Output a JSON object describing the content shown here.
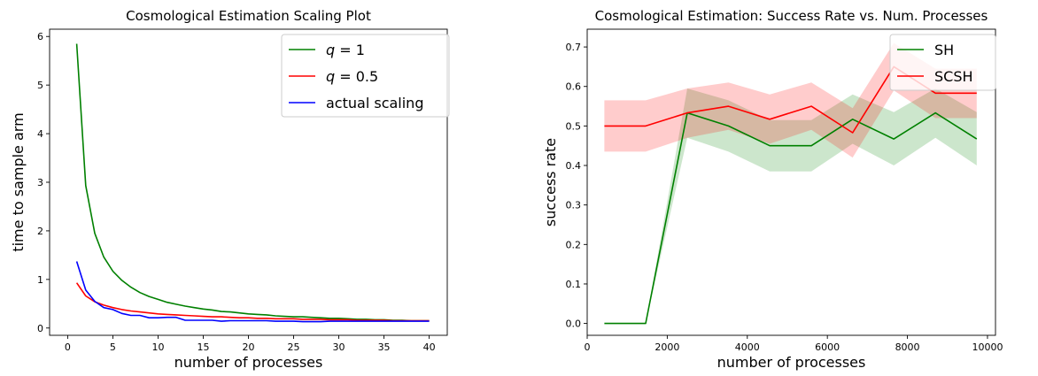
{
  "chart_data": [
    {
      "type": "line",
      "title": "Cosmological Estimation Scaling Plot",
      "xlabel": "number of processes",
      "ylabel": "time to sample arm",
      "xlim": [
        -2,
        42
      ],
      "ylim": [
        -0.15,
        6.15
      ],
      "xticks": [
        0,
        5,
        10,
        15,
        20,
        25,
        30,
        35,
        40
      ],
      "yticks": [
        0,
        1,
        2,
        3,
        4,
        5,
        6
      ],
      "grid": false,
      "legend_position": "top-right",
      "series": [
        {
          "name": "q = 1",
          "legend_parts": [
            "q",
            " = 1"
          ],
          "color": "#008000",
          "x": [
            1,
            2,
            3,
            4,
            5,
            6,
            7,
            8,
            9,
            10,
            11,
            12,
            13,
            14,
            15,
            16,
            17,
            18,
            19,
            20,
            21,
            22,
            23,
            24,
            25,
            26,
            27,
            28,
            29,
            30,
            31,
            32,
            33,
            34,
            35,
            36,
            37,
            38,
            39,
            40
          ],
          "y": [
            5.85,
            2.93,
            1.95,
            1.46,
            1.17,
            0.98,
            0.84,
            0.73,
            0.65,
            0.59,
            0.53,
            0.49,
            0.45,
            0.42,
            0.39,
            0.37,
            0.34,
            0.33,
            0.31,
            0.29,
            0.28,
            0.27,
            0.25,
            0.24,
            0.23,
            0.23,
            0.22,
            0.21,
            0.2,
            0.2,
            0.19,
            0.18,
            0.18,
            0.17,
            0.17,
            0.16,
            0.16,
            0.15,
            0.15,
            0.15
          ]
        },
        {
          "name": "q = 0.5",
          "legend_parts": [
            "q",
            " = 0.5"
          ],
          "color": "#ff0000",
          "x": [
            1,
            2,
            3,
            4,
            5,
            6,
            7,
            8,
            9,
            10,
            11,
            12,
            13,
            14,
            15,
            16,
            17,
            18,
            19,
            20,
            21,
            22,
            23,
            24,
            25,
            26,
            27,
            28,
            29,
            30,
            31,
            32,
            33,
            34,
            35,
            36,
            37,
            38,
            39,
            40
          ],
          "y": [
            0.93,
            0.66,
            0.54,
            0.47,
            0.42,
            0.38,
            0.35,
            0.33,
            0.31,
            0.29,
            0.28,
            0.27,
            0.26,
            0.25,
            0.24,
            0.23,
            0.23,
            0.22,
            0.21,
            0.21,
            0.2,
            0.2,
            0.19,
            0.19,
            0.19,
            0.18,
            0.18,
            0.18,
            0.17,
            0.17,
            0.17,
            0.16,
            0.16,
            0.16,
            0.16,
            0.15,
            0.15,
            0.15,
            0.15,
            0.15
          ]
        },
        {
          "name": "actual scaling",
          "legend_parts": [
            "actual scaling",
            ""
          ],
          "color": "#0000ff",
          "x": [
            1,
            2,
            3,
            4,
            5,
            6,
            7,
            8,
            9,
            10,
            11,
            12,
            13,
            14,
            15,
            16,
            17,
            18,
            19,
            20,
            21,
            22,
            23,
            24,
            25,
            26,
            27,
            28,
            29,
            30,
            31,
            32,
            33,
            34,
            35,
            36,
            37,
            38,
            39,
            40
          ],
          "y": [
            1.37,
            0.78,
            0.55,
            0.42,
            0.38,
            0.3,
            0.26,
            0.26,
            0.21,
            0.21,
            0.22,
            0.22,
            0.16,
            0.16,
            0.16,
            0.16,
            0.14,
            0.15,
            0.15,
            0.15,
            0.15,
            0.15,
            0.14,
            0.14,
            0.14,
            0.13,
            0.13,
            0.13,
            0.14,
            0.14,
            0.14,
            0.14,
            0.14,
            0.14,
            0.14,
            0.14,
            0.14,
            0.14,
            0.14,
            0.14
          ]
        }
      ]
    },
    {
      "type": "line",
      "title": "Cosmological Estimation: Success Rate vs. Num. Processes",
      "xlabel": "number of processes",
      "ylabel": "success rate",
      "xlim": [
        0,
        10200
      ],
      "ylim": [
        -0.03,
        0.745
      ],
      "xticks": [
        0,
        2000,
        4000,
        6000,
        8000,
        10000
      ],
      "yticks": [
        0.0,
        0.1,
        0.2,
        0.3,
        0.4,
        0.5,
        0.6,
        0.7
      ],
      "grid": false,
      "legend_position": "top-right",
      "series": [
        {
          "name": "SH",
          "legend_parts": [
            "SH",
            ""
          ],
          "color": "#008000",
          "x": [
            430,
            1460,
            2500,
            3530,
            4560,
            5600,
            6630,
            7660,
            8700,
            9730
          ],
          "y": [
            0.0,
            0.0,
            0.533,
            0.5,
            0.45,
            0.45,
            0.517,
            0.467,
            0.533,
            0.467
          ],
          "band_low": [
            0.0,
            0.0,
            0.47,
            0.435,
            0.385,
            0.385,
            0.455,
            0.4,
            0.47,
            0.4
          ],
          "band_high": [
            0.0,
            0.0,
            0.595,
            0.565,
            0.515,
            0.515,
            0.58,
            0.535,
            0.595,
            0.535
          ]
        },
        {
          "name": "SCSH",
          "legend_parts": [
            "SCSH",
            ""
          ],
          "color": "#ff0000",
          "x": [
            430,
            1460,
            2500,
            3530,
            4560,
            5600,
            6630,
            7660,
            8700,
            9730
          ],
          "y": [
            0.5,
            0.5,
            0.533,
            0.55,
            0.517,
            0.55,
            0.483,
            0.65,
            0.583,
            0.583
          ],
          "band_low": [
            0.435,
            0.435,
            0.47,
            0.49,
            0.455,
            0.49,
            0.42,
            0.59,
            0.52,
            0.52
          ],
          "band_high": [
            0.565,
            0.565,
            0.595,
            0.61,
            0.58,
            0.61,
            0.545,
            0.71,
            0.645,
            0.645
          ]
        }
      ]
    }
  ]
}
